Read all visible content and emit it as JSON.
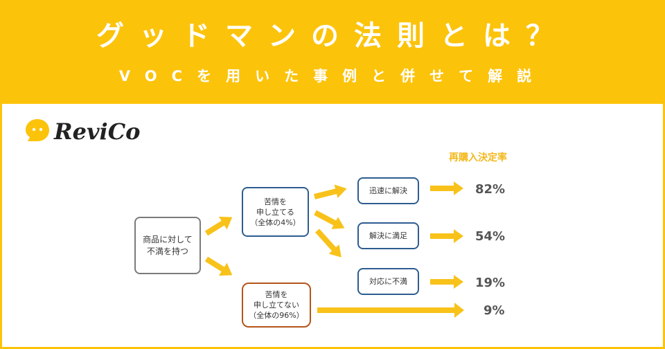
{
  "banner": {
    "title": "グッドマンの法則とは？",
    "subtitle": "VOCを用いた事例と併せて解説",
    "background_color": "#fcc30b"
  },
  "logo": {
    "text": "ReviCo",
    "icon": "speech-bubble-icon"
  },
  "flow": {
    "start": {
      "line1": "商品に対して",
      "line2": "不満を持つ"
    },
    "complain": {
      "line1": "苦情を",
      "line2": "申し立てる",
      "line3": "（全体の4%）"
    },
    "no_complain": {
      "line1": "苦情を",
      "line2": "申し立てない",
      "line3": "（全体の96%）"
    },
    "outcomes": {
      "quick": "迅速に解決",
      "satisfied": "解決に満足",
      "respond": "対応に不満"
    },
    "rate_header": "再購入決定率",
    "rates": {
      "quick": "82%",
      "satisfied": "54%",
      "respond": "19%",
      "no_complain": "9%"
    }
  },
  "colors": {
    "accent": "#fcc30b",
    "arrow": "#f8c21a",
    "box_blue": "#2d5c8f",
    "box_brown": "#b5551a",
    "rate_header": "#f3b81b"
  }
}
